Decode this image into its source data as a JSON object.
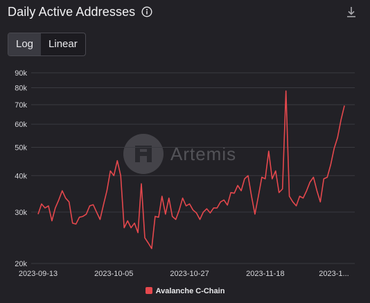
{
  "header": {
    "title": "Daily Active Addresses",
    "info_icon": "info-icon",
    "download_icon": "download-icon"
  },
  "scale_toggle": {
    "options": [
      "Log",
      "Linear"
    ],
    "selected": "Log"
  },
  "watermark": {
    "text": "Artemis"
  },
  "colors": {
    "background": "#222126",
    "series": "#e5484d",
    "grid": "#3a3a40"
  },
  "chart_data": {
    "type": "line",
    "title": "Daily Active Addresses",
    "y_scale": "log",
    "ylim": [
      20000,
      90000
    ],
    "y_ticks": [
      20000,
      30000,
      40000,
      50000,
      60000,
      70000,
      80000,
      90000
    ],
    "y_tick_labels": [
      "20k",
      "30k",
      "40k",
      "50k",
      "60k",
      "70k",
      "80k",
      "90k"
    ],
    "x_tick_labels": [
      "2023-09-13",
      "2023-10-05",
      "2023-10-27",
      "2023-11-18",
      "2023-1..."
    ],
    "x_tick_dates": [
      "2023-09-13",
      "2023-10-05",
      "2023-10-27",
      "2023-11-18",
      "2023-12-10"
    ],
    "x_range": [
      "2023-09-13",
      "2023-12-14"
    ],
    "grid": "horizontal",
    "legend": "bottom-center",
    "series": [
      {
        "name": "Avalanche C-Chain",
        "color": "#e5484d",
        "points": [
          [
            "2023-09-13",
            29500
          ],
          [
            "2023-09-14",
            32000
          ],
          [
            "2023-09-15",
            31000
          ],
          [
            "2023-09-16",
            31500
          ],
          [
            "2023-09-17",
            28000
          ],
          [
            "2023-09-18",
            31000
          ],
          [
            "2023-09-19",
            33000
          ],
          [
            "2023-09-20",
            35500
          ],
          [
            "2023-09-21",
            33500
          ],
          [
            "2023-09-22",
            32500
          ],
          [
            "2023-09-23",
            27500
          ],
          [
            "2023-09-24",
            27300
          ],
          [
            "2023-09-25",
            28800
          ],
          [
            "2023-09-26",
            29000
          ],
          [
            "2023-09-27",
            29500
          ],
          [
            "2023-09-28",
            31500
          ],
          [
            "2023-09-29",
            31800
          ],
          [
            "2023-09-30",
            30000
          ],
          [
            "2023-10-01",
            28300
          ],
          [
            "2023-10-02",
            31800
          ],
          [
            "2023-10-03",
            35500
          ],
          [
            "2023-10-04",
            41500
          ],
          [
            "2023-10-05",
            40000
          ],
          [
            "2023-10-06",
            45000
          ],
          [
            "2023-10-07",
            40000
          ],
          [
            "2023-10-08",
            26500
          ],
          [
            "2023-10-09",
            28000
          ],
          [
            "2023-10-10",
            26500
          ],
          [
            "2023-10-11",
            27500
          ],
          [
            "2023-10-12",
            25500
          ],
          [
            "2023-10-13",
            37500
          ],
          [
            "2023-10-14",
            24500
          ],
          [
            "2023-10-15",
            23500
          ],
          [
            "2023-10-16",
            22500
          ],
          [
            "2023-10-17",
            29000
          ],
          [
            "2023-10-18",
            28800
          ],
          [
            "2023-10-19",
            34000
          ],
          [
            "2023-10-20",
            29500
          ],
          [
            "2023-10-21",
            33500
          ],
          [
            "2023-10-22",
            29000
          ],
          [
            "2023-10-23",
            28300
          ],
          [
            "2023-10-24",
            30500
          ],
          [
            "2023-10-25",
            33500
          ],
          [
            "2023-10-26",
            31500
          ],
          [
            "2023-10-27",
            32000
          ],
          [
            "2023-10-28",
            30500
          ],
          [
            "2023-10-29",
            29800
          ],
          [
            "2023-10-30",
            28300
          ],
          [
            "2023-10-31",
            30000
          ],
          [
            "2023-11-01",
            30800
          ],
          [
            "2023-11-02",
            29800
          ],
          [
            "2023-11-03",
            31000
          ],
          [
            "2023-11-04",
            31000
          ],
          [
            "2023-11-05",
            32500
          ],
          [
            "2023-11-06",
            33000
          ],
          [
            "2023-11-07",
            31700
          ],
          [
            "2023-11-08",
            35000
          ],
          [
            "2023-11-09",
            34800
          ],
          [
            "2023-11-10",
            37000
          ],
          [
            "2023-11-11",
            35500
          ],
          [
            "2023-11-12",
            39000
          ],
          [
            "2023-11-13",
            40000
          ],
          [
            "2023-11-14",
            34000
          ],
          [
            "2023-11-15",
            29500
          ],
          [
            "2023-11-16",
            34000
          ],
          [
            "2023-11-17",
            39500
          ],
          [
            "2023-11-18",
            39000
          ],
          [
            "2023-11-19",
            48500
          ],
          [
            "2023-11-20",
            39000
          ],
          [
            "2023-11-21",
            41500
          ],
          [
            "2023-11-22",
            35000
          ],
          [
            "2023-11-23",
            36000
          ],
          [
            "2023-11-24",
            78000
          ],
          [
            "2023-11-25",
            34000
          ],
          [
            "2023-11-26",
            32500
          ],
          [
            "2023-11-27",
            31500
          ],
          [
            "2023-11-28",
            34000
          ],
          [
            "2023-11-29",
            33500
          ],
          [
            "2023-11-30",
            35500
          ],
          [
            "2023-12-01",
            38000
          ],
          [
            "2023-12-02",
            39500
          ],
          [
            "2023-12-03",
            35500
          ],
          [
            "2023-12-04",
            32500
          ],
          [
            "2023-12-05",
            39000
          ],
          [
            "2023-12-06",
            39500
          ],
          [
            "2023-12-07",
            43500
          ],
          [
            "2023-12-08",
            49500
          ],
          [
            "2023-12-09",
            54000
          ],
          [
            "2023-12-10",
            62000
          ],
          [
            "2023-12-11",
            69500
          ]
        ]
      }
    ]
  }
}
